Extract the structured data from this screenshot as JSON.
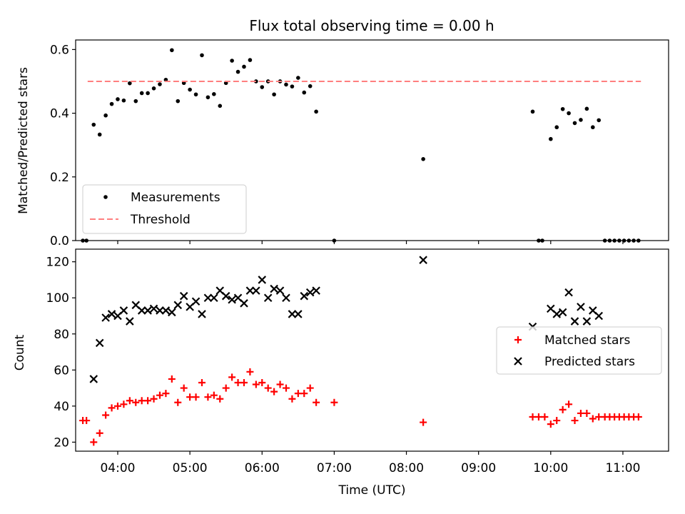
{
  "title": "Flux total observing time = 0.00 h",
  "chart_data": [
    {
      "type": "scatter",
      "ylabel": "Matched/Predicted stars",
      "xlim": [
        "03:25",
        "11:38"
      ],
      "ylim": [
        0,
        0.63
      ],
      "yticks": [
        "0.0",
        "0.2",
        "0.4",
        "0.6"
      ],
      "legend_position": "lower-left",
      "series": [
        {
          "name": "Measurements",
          "color": "#000000",
          "marker": "dot",
          "points": [
            [
              "03:31",
              0.0
            ],
            [
              "03:34",
              0.0
            ],
            [
              "03:40",
              0.364
            ],
            [
              "03:45",
              0.333
            ],
            [
              "03:50",
              0.393
            ],
            [
              "03:55",
              0.429
            ],
            [
              "04:00",
              0.444
            ],
            [
              "04:05",
              0.44
            ],
            [
              "04:10",
              0.494
            ],
            [
              "04:15",
              0.438
            ],
            [
              "04:20",
              0.463
            ],
            [
              "04:25",
              0.463
            ],
            [
              "04:30",
              0.478
            ],
            [
              "04:35",
              0.491
            ],
            [
              "04:40",
              0.505
            ],
            [
              "04:45",
              0.598
            ],
            [
              "04:50",
              0.438
            ],
            [
              "04:55",
              0.495
            ],
            [
              "05:00",
              0.474
            ],
            [
              "05:05",
              0.459
            ],
            [
              "05:10",
              0.582
            ],
            [
              "05:15",
              0.45
            ],
            [
              "05:20",
              0.46
            ],
            [
              "05:25",
              0.423
            ],
            [
              "05:30",
              0.495
            ],
            [
              "05:35",
              0.565
            ],
            [
              "05:40",
              0.53
            ],
            [
              "05:45",
              0.546
            ],
            [
              "05:50",
              0.567
            ],
            [
              "05:55",
              0.5
            ],
            [
              "06:00",
              0.482
            ],
            [
              "06:05",
              0.5
            ],
            [
              "06:10",
              0.459
            ],
            [
              "06:15",
              0.5
            ],
            [
              "06:20",
              0.49
            ],
            [
              "06:25",
              0.484
            ],
            [
              "06:30",
              0.511
            ],
            [
              "06:35",
              0.465
            ],
            [
              "06:40",
              0.485
            ],
            [
              "06:45",
              0.405
            ],
            [
              "07:00",
              0.0
            ],
            [
              "08:14",
              0.256
            ],
            [
              "09:45",
              0.405
            ],
            [
              "09:50",
              0.0
            ],
            [
              "09:53",
              0.0
            ],
            [
              "10:00",
              0.319
            ],
            [
              "10:05",
              0.356
            ],
            [
              "10:10",
              0.413
            ],
            [
              "10:15",
              0.4
            ],
            [
              "10:20",
              0.369
            ],
            [
              "10:25",
              0.379
            ],
            [
              "10:30",
              0.414
            ],
            [
              "10:35",
              0.356
            ],
            [
              "10:40",
              0.378
            ],
            [
              "10:45",
              0.0
            ],
            [
              "10:49",
              0.0
            ],
            [
              "10:53",
              0.0
            ],
            [
              "10:57",
              0.0
            ],
            [
              "11:01",
              0.0
            ],
            [
              "11:05",
              0.0
            ],
            [
              "11:09",
              0.0
            ],
            [
              "11:13",
              0.0
            ]
          ]
        },
        {
          "name": "Threshold",
          "color": "#ff7f7f",
          "marker": "dashed-line",
          "points": [
            [
              "03:35",
              0.5
            ],
            [
              "11:15",
              0.5
            ]
          ]
        }
      ]
    },
    {
      "type": "scatter",
      "xlabel": "Time (UTC)",
      "ylabel": "Count",
      "xlim": [
        "03:25",
        "11:38"
      ],
      "ylim": [
        15,
        127
      ],
      "yticks": [
        "20",
        "40",
        "60",
        "80",
        "100",
        "120"
      ],
      "xticks": [
        "04:00",
        "05:00",
        "06:00",
        "07:00",
        "08:00",
        "09:00",
        "10:00",
        "11:00"
      ],
      "legend_position": "center-right",
      "series": [
        {
          "name": "Matched stars",
          "color": "#ff0000",
          "marker": "plus",
          "points": [
            [
              "03:31",
              32
            ],
            [
              "03:34",
              32
            ],
            [
              "03:40",
              20
            ],
            [
              "03:45",
              25
            ],
            [
              "03:50",
              35
            ],
            [
              "03:55",
              39
            ],
            [
              "04:00",
              40
            ],
            [
              "04:05",
              41
            ],
            [
              "04:10",
              43
            ],
            [
              "04:15",
              42
            ],
            [
              "04:20",
              43
            ],
            [
              "04:25",
              43
            ],
            [
              "04:30",
              44
            ],
            [
              "04:35",
              46
            ],
            [
              "04:40",
              47
            ],
            [
              "04:45",
              55
            ],
            [
              "04:50",
              42
            ],
            [
              "04:55",
              50
            ],
            [
              "05:00",
              45
            ],
            [
              "05:05",
              45
            ],
            [
              "05:10",
              53
            ],
            [
              "05:15",
              45
            ],
            [
              "05:20",
              46
            ],
            [
              "05:25",
              44
            ],
            [
              "05:30",
              50
            ],
            [
              "05:35",
              56
            ],
            [
              "05:40",
              53
            ],
            [
              "05:45",
              53
            ],
            [
              "05:50",
              59
            ],
            [
              "05:55",
              52
            ],
            [
              "06:00",
              53
            ],
            [
              "06:05",
              50
            ],
            [
              "06:10",
              48
            ],
            [
              "06:15",
              52
            ],
            [
              "06:20",
              50
            ],
            [
              "06:25",
              44
            ],
            [
              "06:30",
              47
            ],
            [
              "06:35",
              47
            ],
            [
              "06:40",
              50
            ],
            [
              "06:45",
              42
            ],
            [
              "07:00",
              42
            ],
            [
              "08:14",
              31
            ],
            [
              "09:45",
              34
            ],
            [
              "09:50",
              34
            ],
            [
              "09:55",
              34
            ],
            [
              "10:00",
              30
            ],
            [
              "10:05",
              32
            ],
            [
              "10:10",
              38
            ],
            [
              "10:15",
              41
            ],
            [
              "10:20",
              32
            ],
            [
              "10:25",
              36
            ],
            [
              "10:30",
              36
            ],
            [
              "10:35",
              33
            ],
            [
              "10:40",
              34
            ],
            [
              "10:45",
              34
            ],
            [
              "10:49",
              34
            ],
            [
              "10:53",
              34
            ],
            [
              "10:57",
              34
            ],
            [
              "11:01",
              34
            ],
            [
              "11:05",
              34
            ],
            [
              "11:09",
              34
            ],
            [
              "11:13",
              34
            ]
          ]
        },
        {
          "name": "Predicted stars",
          "color": "#000000",
          "marker": "x",
          "points": [
            [
              "03:40",
              55
            ],
            [
              "03:45",
              75
            ],
            [
              "03:50",
              89
            ],
            [
              "03:55",
              91
            ],
            [
              "04:00",
              90
            ],
            [
              "04:05",
              93
            ],
            [
              "04:10",
              87
            ],
            [
              "04:15",
              96
            ],
            [
              "04:20",
              93
            ],
            [
              "04:25",
              93
            ],
            [
              "04:30",
              94
            ],
            [
              "04:35",
              93
            ],
            [
              "04:40",
              93
            ],
            [
              "04:45",
              92
            ],
            [
              "04:50",
              96
            ],
            [
              "04:55",
              101
            ],
            [
              "05:00",
              95
            ],
            [
              "05:05",
              98
            ],
            [
              "05:10",
              91
            ],
            [
              "05:15",
              100
            ],
            [
              "05:20",
              100
            ],
            [
              "05:25",
              104
            ],
            [
              "05:30",
              101
            ],
            [
              "05:35",
              99
            ],
            [
              "05:40",
              100
            ],
            [
              "05:45",
              97
            ],
            [
              "05:50",
              104
            ],
            [
              "05:55",
              104
            ],
            [
              "06:00",
              110
            ],
            [
              "06:05",
              100
            ],
            [
              "06:10",
              105
            ],
            [
              "06:15",
              104
            ],
            [
              "06:20",
              100
            ],
            [
              "06:25",
              91
            ],
            [
              "06:30",
              91
            ],
            [
              "06:35",
              101
            ],
            [
              "06:40",
              103
            ],
            [
              "06:45",
              104
            ],
            [
              "08:14",
              121
            ],
            [
              "09:45",
              84
            ],
            [
              "10:00",
              94
            ],
            [
              "10:05",
              91
            ],
            [
              "10:10",
              92
            ],
            [
              "10:15",
              103
            ],
            [
              "10:20",
              87
            ],
            [
              "10:25",
              95
            ],
            [
              "10:30",
              87
            ],
            [
              "10:35",
              93
            ],
            [
              "10:40",
              90
            ]
          ]
        }
      ]
    }
  ]
}
